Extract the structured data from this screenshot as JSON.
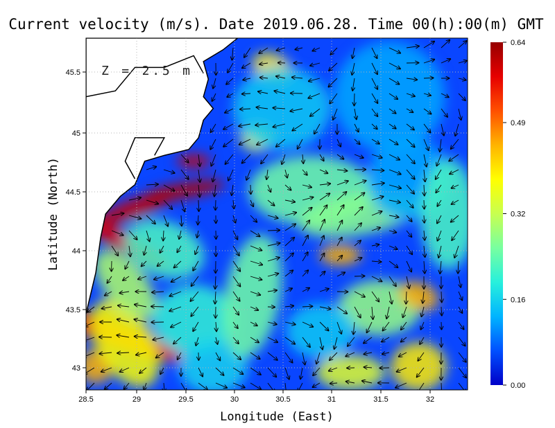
{
  "chart_data": {
    "type": "heatmap",
    "title": "Current velocity (m/s). Date 2019.06.28. Time 00(h):00(m) GMT",
    "xlabel": "Longitude (East)",
    "ylabel": "Latitude (North)",
    "depth_label": "Z = 2.5 m",
    "xlim": [
      28.5,
      32.4
    ],
    "ylim": [
      42.8,
      45.8
    ],
    "x_ticks": [
      "28.5",
      "29",
      "29.5",
      "30",
      "30.5",
      "31",
      "31.5",
      "32"
    ],
    "x_tick_values": [
      28.5,
      29,
      29.5,
      30,
      30.5,
      31,
      31.5,
      32
    ],
    "y_ticks": [
      "43",
      "43.5",
      "44",
      "44.5",
      "45",
      "45.5"
    ],
    "y_tick_values": [
      43,
      43.5,
      44,
      44.5,
      45,
      45.5
    ],
    "grid": true,
    "colorbar": {
      "min": 0.0,
      "max": 0.64,
      "labels": [
        "0.64",
        "0.49",
        "0.32",
        "0.16",
        "0.00"
      ],
      "label_values": [
        0.64,
        0.49,
        0.32,
        0.16,
        0.0
      ],
      "colors": [
        "#0000c8",
        "#0050ff",
        "#00b4ff",
        "#28f0dc",
        "#78ffa0",
        "#c8ff50",
        "#ffff00",
        "#ffb400",
        "#ff5000",
        "#e60000",
        "#960000"
      ]
    },
    "land_color": "#ffffff",
    "coast_color": "#000000",
    "grid_color": "#b4b4b4",
    "background_color": "#0a46ff"
  }
}
